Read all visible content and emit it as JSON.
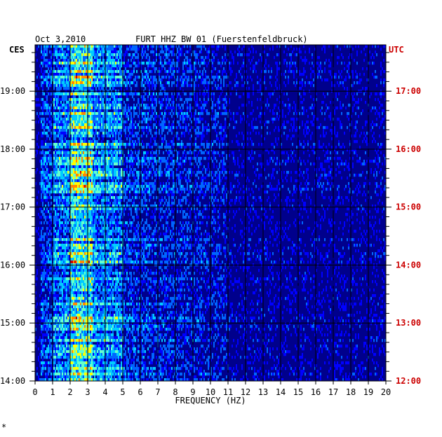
{
  "header": {
    "date": "Oct 3,2010",
    "station": "FURT HHZ BW 01 (Fuerstenfeldbruck)",
    "left_zone": "CES",
    "right_zone": "UTC"
  },
  "footer": {
    "mark": "*"
  },
  "chart_data": {
    "type": "heatmap",
    "title": "FURT HHZ BW 01 (Fuerstenfeldbruck)",
    "date": "Oct 3,2010",
    "xlabel": "FREQUENCY (HZ)",
    "xlim": [
      0,
      20
    ],
    "x_ticks": [
      "0",
      "1",
      "2",
      "3",
      "4",
      "5",
      "6",
      "7",
      "8",
      "9",
      "10",
      "11",
      "12",
      "13",
      "14",
      "15",
      "16",
      "17",
      "18",
      "19",
      "20"
    ],
    "y_left_label": "CES",
    "y_right_label": "UTC",
    "y_left_ticks": [
      "19:00",
      "18:00",
      "17:00",
      "16:00",
      "15:00",
      "14:00"
    ],
    "y_right_ticks": [
      "17:00",
      "16:00",
      "15:00",
      "14:00",
      "13:00",
      "12:00"
    ],
    "y_tick_values_hours_ces": [
      19,
      18,
      17,
      16,
      15,
      14
    ],
    "ylim_ces_hours": [
      14,
      19.8
    ],
    "minor_ticks_per_hour": 6,
    "colormap": [
      "#00008c",
      "#0000ff",
      "#0066ff",
      "#00ccff",
      "#66ffcc",
      "#ffff00",
      "#ff8800",
      "#cc0000"
    ],
    "background_color": "#00008c",
    "grid": true,
    "dominant_band_hz": [
      2,
      3.2
    ]
  }
}
